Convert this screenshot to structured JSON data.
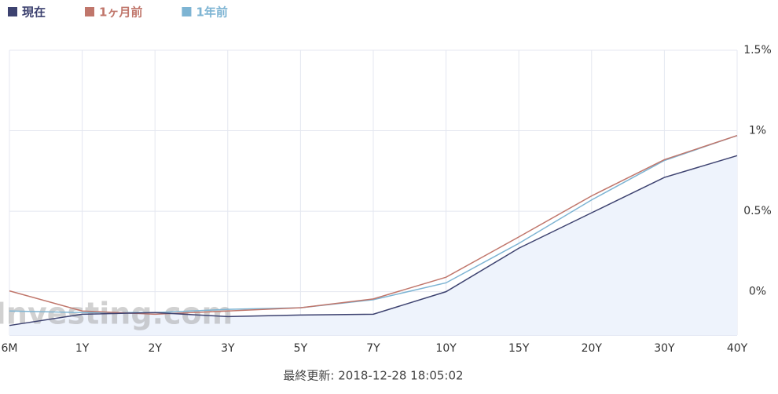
{
  "chart_data": {
    "type": "line",
    "categories": [
      "6M",
      "1Y",
      "2Y",
      "3Y",
      "5Y",
      "7Y",
      "10Y",
      "15Y",
      "20Y",
      "30Y",
      "40Y"
    ],
    "series": [
      {
        "name": "現在",
        "color": "#3d4270",
        "values": [
          -0.21,
          -0.14,
          -0.13,
          -0.155,
          -0.145,
          -0.14,
          0.0,
          0.27,
          0.49,
          0.71,
          0.845
        ]
      },
      {
        "name": "1ヶ月前",
        "color": "#c0766b",
        "values": [
          0.005,
          -0.12,
          -0.14,
          -0.12,
          -0.1,
          -0.045,
          0.09,
          0.34,
          0.595,
          0.82,
          0.97
        ]
      },
      {
        "name": "1年前",
        "color": "#7db4d3",
        "values": [
          -0.12,
          -0.13,
          -0.13,
          -0.11,
          -0.1,
          -0.05,
          0.055,
          0.3,
          0.57,
          0.815,
          0.97
        ]
      }
    ],
    "ylim": [
      -0.27,
      1.5
    ],
    "yticks": [
      {
        "value": 0,
        "label": "0%"
      },
      {
        "value": 0.5,
        "label": "0.5%"
      },
      {
        "value": 1,
        "label": "1%"
      },
      {
        "value": 1.5,
        "label": "1.5%"
      }
    ],
    "grid": true,
    "area_fill": "#eef3fc",
    "watermark": "Investing.com",
    "footer": "最終更新: 2018-12-28 18:05:02"
  }
}
